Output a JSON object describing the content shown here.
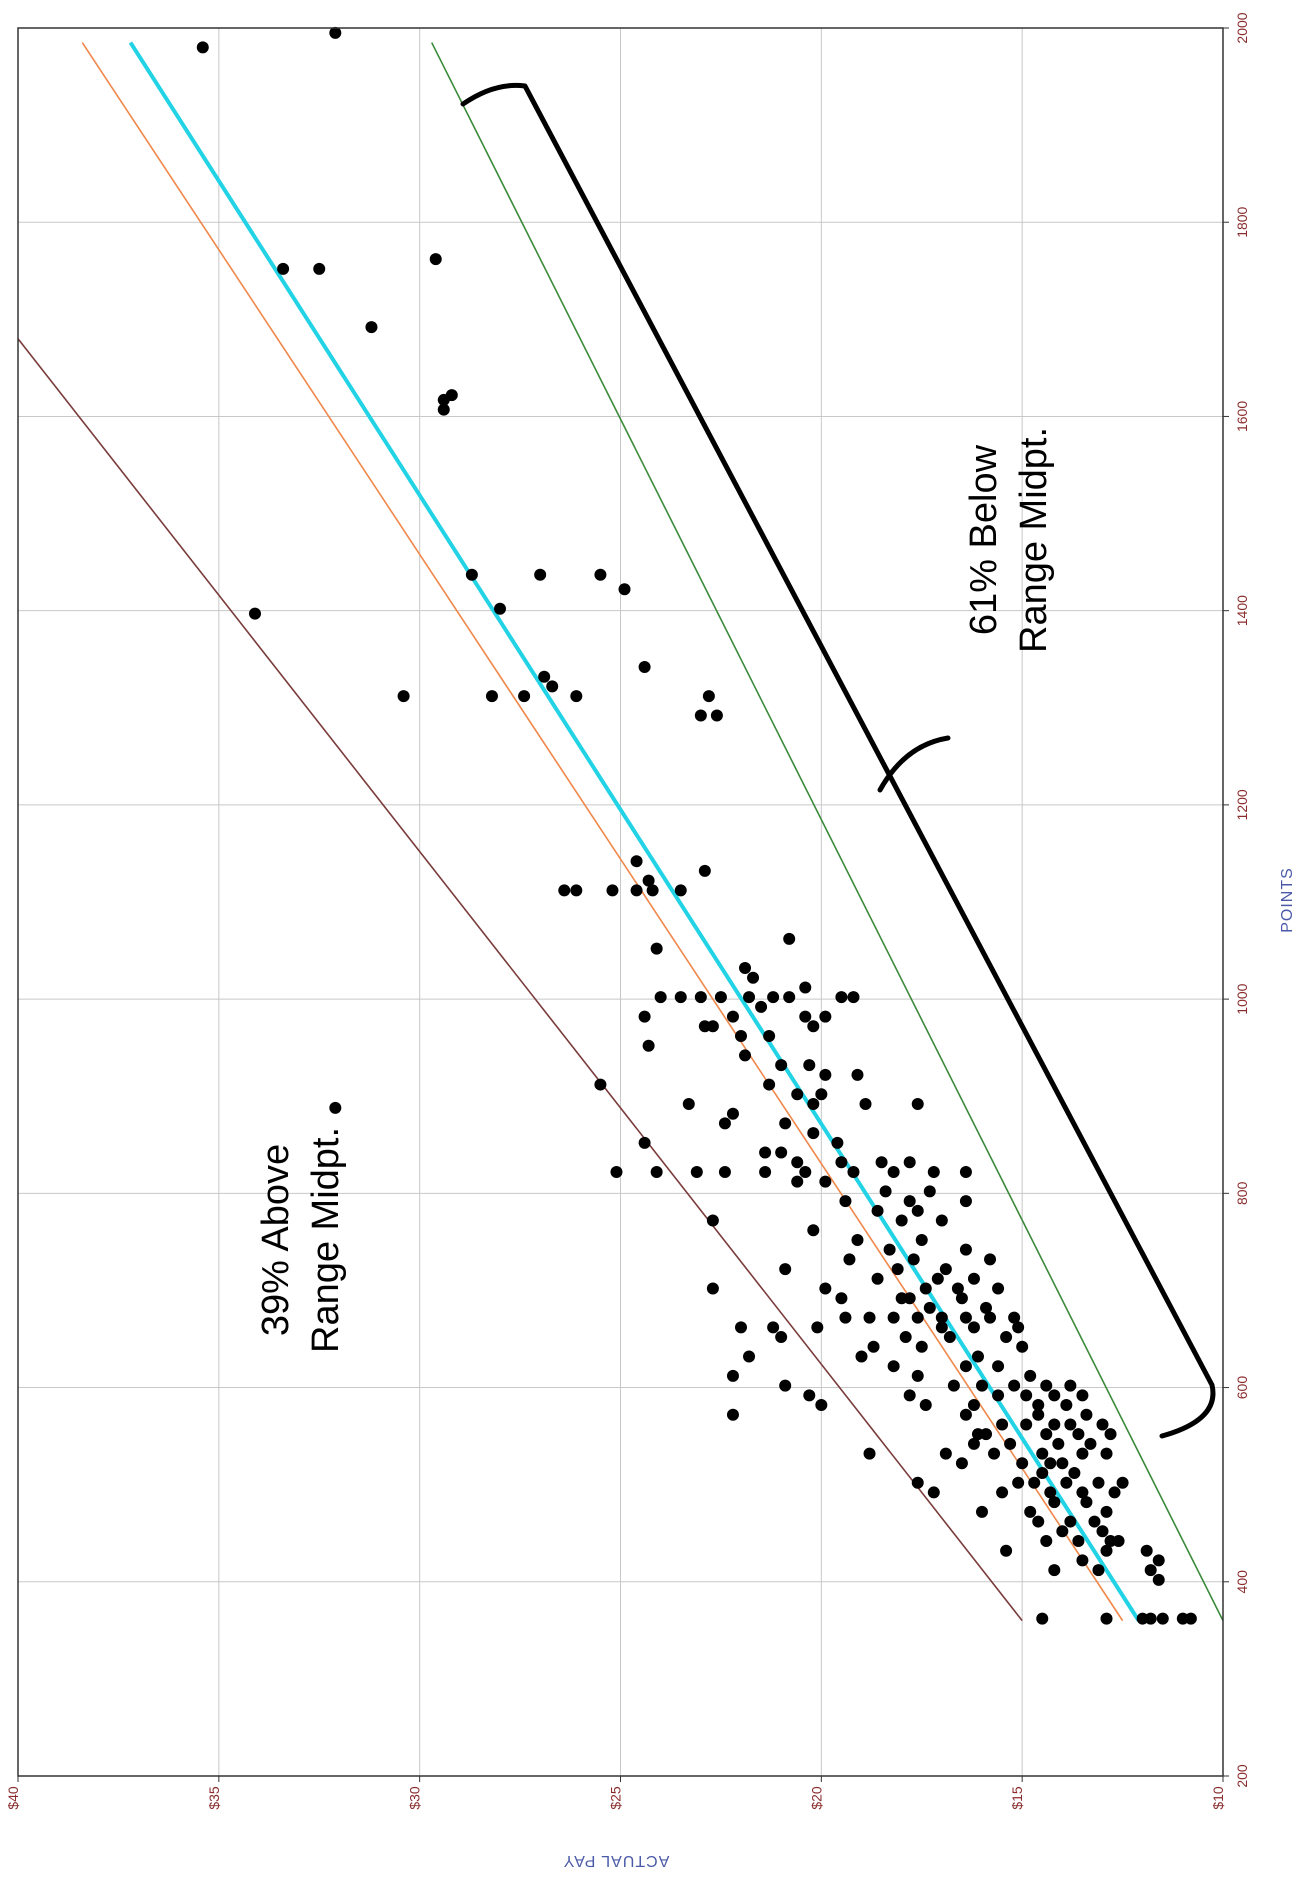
{
  "chart_data": {
    "type": "scatter",
    "xlabel": "POINTS",
    "ylabel": "ACTUAL PAY",
    "xlim": [
      200,
      2000
    ],
    "ylim": [
      10,
      40
    ],
    "x_ticks": [
      200,
      400,
      600,
      800,
      1000,
      1200,
      1400,
      1600,
      1800,
      2000
    ],
    "y_ticks": [
      10,
      15,
      20,
      25,
      30,
      35,
      40
    ],
    "x_tick_labels": [
      "200",
      "400",
      "600",
      "800",
      "1000",
      "1200",
      "1400",
      "1600",
      "1800",
      "2000"
    ],
    "y_tick_labels": [
      "$10",
      "$15",
      "$20",
      "$25",
      "$30",
      "$35",
      "$40"
    ],
    "grid": true,
    "orientation": "rotated 90° clockwise (POINTS axis runs along the right edge, pay decreases downward toward $10 at the bottom)",
    "annotations": [
      {
        "line1": "39% Above",
        "line2": "Range Midpt."
      },
      {
        "line1": "61% Below",
        "line2": "Range Midpt."
      }
    ],
    "lines": [
      {
        "color": "#7a3b3b",
        "x": [
          360,
          1680
        ],
        "y": [
          15.0,
          40.0
        ]
      },
      {
        "color": "#f0874a",
        "x": [
          360,
          1985
        ],
        "y": [
          12.5,
          38.4
        ]
      },
      {
        "color": "#22d3e6",
        "x": [
          360,
          1985
        ],
        "y": [
          12.1,
          37.2
        ]
      },
      {
        "color": "#3c8a3c",
        "x": [
          360,
          1985
        ],
        "y": [
          10.0,
          29.7
        ]
      }
    ],
    "points": [
      [
        362,
        14.5
      ],
      [
        362,
        12.0
      ],
      [
        362,
        11.8
      ],
      [
        362,
        11.5
      ],
      [
        362,
        11.0
      ],
      [
        362,
        10.8
      ],
      [
        362,
        12.9
      ],
      [
        402,
        11.6
      ],
      [
        412,
        11.8
      ],
      [
        412,
        13.1
      ],
      [
        412,
        14.2
      ],
      [
        422,
        11.6
      ],
      [
        422,
        13.5
      ],
      [
        432,
        11.9
      ],
      [
        432,
        12.9
      ],
      [
        432,
        15.4
      ],
      [
        442,
        12.6
      ],
      [
        442,
        12.8
      ],
      [
        442,
        13.6
      ],
      [
        442,
        14.4
      ],
      [
        452,
        13.0
      ],
      [
        452,
        14.0
      ],
      [
        462,
        13.2
      ],
      [
        462,
        13.8
      ],
      [
        462,
        14.6
      ],
      [
        472,
        12.9
      ],
      [
        472,
        14.8
      ],
      [
        472,
        16.0
      ],
      [
        482,
        13.4
      ],
      [
        482,
        14.2
      ],
      [
        492,
        12.7
      ],
      [
        492,
        13.5
      ],
      [
        492,
        14.3
      ],
      [
        492,
        15.5
      ],
      [
        492,
        17.2
      ],
      [
        502,
        12.5
      ],
      [
        502,
        13.1
      ],
      [
        502,
        13.9
      ],
      [
        502,
        14.7
      ],
      [
        502,
        15.1
      ],
      [
        502,
        17.6
      ],
      [
        512,
        13.7
      ],
      [
        512,
        14.5
      ],
      [
        522,
        14.0
      ],
      [
        522,
        14.3
      ],
      [
        522,
        15.0
      ],
      [
        522,
        16.5
      ],
      [
        532,
        12.9
      ],
      [
        532,
        13.5
      ],
      [
        532,
        14.5
      ],
      [
        532,
        15.7
      ],
      [
        532,
        16.9
      ],
      [
        532,
        18.8
      ],
      [
        542,
        13.3
      ],
      [
        542,
        14.1
      ],
      [
        542,
        15.3
      ],
      [
        542,
        16.2
      ],
      [
        552,
        12.8
      ],
      [
        552,
        13.6
      ],
      [
        552,
        14.4
      ],
      [
        552,
        15.9
      ],
      [
        552,
        16.1
      ],
      [
        562,
        13.0
      ],
      [
        562,
        13.8
      ],
      [
        562,
        14.2
      ],
      [
        562,
        14.9
      ],
      [
        562,
        15.5
      ],
      [
        572,
        13.4
      ],
      [
        572,
        14.6
      ],
      [
        572,
        16.4
      ],
      [
        572,
        22.2
      ],
      [
        582,
        13.9
      ],
      [
        582,
        14.6
      ],
      [
        582,
        16.2
      ],
      [
        582,
        17.4
      ],
      [
        582,
        20.0
      ],
      [
        592,
        13.5
      ],
      [
        592,
        14.2
      ],
      [
        592,
        14.9
      ],
      [
        592,
        15.6
      ],
      [
        592,
        17.8
      ],
      [
        592,
        20.3
      ],
      [
        602,
        13.8
      ],
      [
        602,
        14.4
      ],
      [
        602,
        15.2
      ],
      [
        602,
        16.0
      ],
      [
        602,
        16.7
      ],
      [
        602,
        20.9
      ],
      [
        612,
        14.8
      ],
      [
        612,
        17.6
      ],
      [
        612,
        22.2
      ],
      [
        622,
        15.6
      ],
      [
        622,
        16.4
      ],
      [
        622,
        18.2
      ],
      [
        632,
        16.1
      ],
      [
        632,
        19.0
      ],
      [
        632,
        21.8
      ],
      [
        642,
        15.0
      ],
      [
        642,
        17.5
      ],
      [
        642,
        18.7
      ],
      [
        652,
        15.4
      ],
      [
        652,
        16.8
      ],
      [
        652,
        17.9
      ],
      [
        652,
        21.0
      ],
      [
        662,
        15.1
      ],
      [
        662,
        16.2
      ],
      [
        662,
        17.0
      ],
      [
        662,
        20.1
      ],
      [
        662,
        21.2
      ],
      [
        662,
        22.0
      ],
      [
        672,
        15.2
      ],
      [
        672,
        15.8
      ],
      [
        672,
        16.4
      ],
      [
        672,
        17.0
      ],
      [
        672,
        17.6
      ],
      [
        672,
        18.2
      ],
      [
        672,
        18.8
      ],
      [
        672,
        19.4
      ],
      [
        682,
        15.9
      ],
      [
        682,
        17.3
      ],
      [
        692,
        16.5
      ],
      [
        692,
        17.8
      ],
      [
        692,
        18.0
      ],
      [
        692,
        19.5
      ],
      [
        702,
        15.6
      ],
      [
        702,
        16.6
      ],
      [
        702,
        17.4
      ],
      [
        702,
        19.9
      ],
      [
        702,
        22.7
      ],
      [
        712,
        16.2
      ],
      [
        712,
        17.1
      ],
      [
        712,
        18.6
      ],
      [
        722,
        16.9
      ],
      [
        722,
        18.1
      ],
      [
        722,
        20.9
      ],
      [
        732,
        15.8
      ],
      [
        732,
        17.7
      ],
      [
        732,
        19.3
      ],
      [
        742,
        16.4
      ],
      [
        742,
        18.3
      ],
      [
        752,
        17.5
      ],
      [
        752,
        19.1
      ],
      [
        762,
        20.2
      ],
      [
        772,
        17.0
      ],
      [
        772,
        18.0
      ],
      [
        772,
        22.7
      ],
      [
        782,
        17.6
      ],
      [
        782,
        18.6
      ],
      [
        792,
        16.4
      ],
      [
        792,
        17.8
      ],
      [
        792,
        19.4
      ],
      [
        802,
        17.3
      ],
      [
        802,
        18.4
      ],
      [
        812,
        19.9
      ],
      [
        812,
        20.6
      ],
      [
        822,
        17.2
      ],
      [
        822,
        18.2
      ],
      [
        822,
        19.2
      ],
      [
        822,
        20.4
      ],
      [
        822,
        21.4
      ],
      [
        822,
        22.4
      ],
      [
        822,
        23.1
      ],
      [
        822,
        24.1
      ],
      [
        822,
        25.1
      ],
      [
        822,
        16.4
      ],
      [
        832,
        17.8
      ],
      [
        832,
        18.5
      ],
      [
        832,
        19.5
      ],
      [
        832,
        20.6
      ],
      [
        842,
        21.0
      ],
      [
        842,
        21.4
      ],
      [
        852,
        24.4
      ],
      [
        852,
        19.6
      ],
      [
        862,
        20.2
      ],
      [
        872,
        20.9
      ],
      [
        872,
        22.4
      ],
      [
        882,
        22.2
      ],
      [
        892,
        17.6
      ],
      [
        892,
        18.9
      ],
      [
        892,
        20.2
      ],
      [
        892,
        23.3
      ],
      [
        902,
        20.0
      ],
      [
        902,
        20.6
      ],
      [
        912,
        21.3
      ],
      [
        912,
        25.5
      ],
      [
        922,
        19.1
      ],
      [
        922,
        19.9
      ],
      [
        932,
        20.3
      ],
      [
        932,
        21.0
      ],
      [
        942,
        21.9
      ],
      [
        952,
        24.3
      ],
      [
        962,
        21.3
      ],
      [
        962,
        22.0
      ],
      [
        972,
        20.2
      ],
      [
        972,
        22.7
      ],
      [
        972,
        22.9
      ],
      [
        982,
        19.9
      ],
      [
        982,
        20.4
      ],
      [
        982,
        22.2
      ],
      [
        982,
        24.4
      ],
      [
        992,
        21.5
      ],
      [
        1002,
        19.2
      ],
      [
        1002,
        19.5
      ],
      [
        1002,
        20.8
      ],
      [
        1002,
        21.2
      ],
      [
        1002,
        21.8
      ],
      [
        1002,
        22.5
      ],
      [
        1002,
        23.0
      ],
      [
        1002,
        23.5
      ],
      [
        1002,
        24.0
      ],
      [
        1012,
        20.4
      ],
      [
        1022,
        21.7
      ],
      [
        1032,
        21.9
      ],
      [
        1052,
        24.1
      ],
      [
        1062,
        20.8
      ],
      [
        1112,
        23.5
      ],
      [
        1112,
        24.2
      ],
      [
        1112,
        24.6
      ],
      [
        1112,
        25.2
      ],
      [
        1112,
        26.1
      ],
      [
        1112,
        26.4
      ],
      [
        1122,
        24.3
      ],
      [
        1132,
        22.9
      ],
      [
        1142,
        24.6
      ],
      [
        1292,
        22.6
      ],
      [
        1292,
        23.0
      ],
      [
        1312,
        22.8
      ],
      [
        1312,
        26.1
      ],
      [
        1312,
        27.4
      ],
      [
        1312,
        28.2
      ],
      [
        1312,
        30.4
      ],
      [
        1322,
        26.7
      ],
      [
        1332,
        26.9
      ],
      [
        1342,
        24.4
      ],
      [
        1397,
        34.1
      ],
      [
        1402,
        28.0
      ],
      [
        1422,
        24.9
      ],
      [
        1437,
        25.5
      ],
      [
        1437,
        27.0
      ],
      [
        1437,
        28.7
      ],
      [
        1607,
        29.4
      ],
      [
        1617,
        29.4
      ],
      [
        1622,
        29.2
      ],
      [
        1692,
        31.2
      ],
      [
        1752,
        32.5
      ],
      [
        1752,
        33.4
      ],
      [
        1762,
        29.6
      ],
      [
        1980,
        35.4
      ],
      [
        1995,
        32.1
      ],
      [
        888,
        32.1
      ]
    ]
  }
}
